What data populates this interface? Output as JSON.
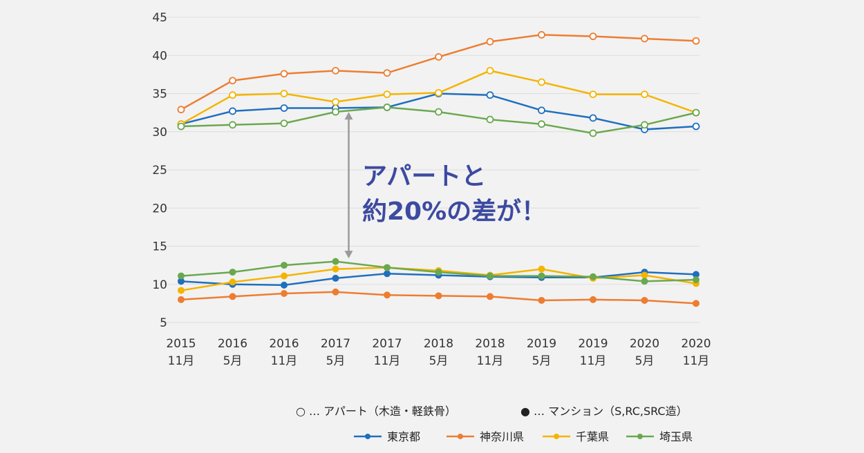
{
  "chart_data": {
    "type": "line",
    "categories": [
      [
        "2015",
        "11月"
      ],
      [
        "2016",
        "5月"
      ],
      [
        "2016",
        "11月"
      ],
      [
        "2017",
        "5月"
      ],
      [
        "2017",
        "11月"
      ],
      [
        "2018",
        "5月"
      ],
      [
        "2018",
        "11月"
      ],
      [
        "2019",
        "5月"
      ],
      [
        "2019",
        "11月"
      ],
      [
        "2020",
        "5月"
      ],
      [
        "2020",
        "11月"
      ]
    ],
    "ylim": [
      5,
      45
    ],
    "yticks": [
      5,
      10,
      15,
      20,
      25,
      30,
      35,
      40,
      45
    ],
    "grid": true,
    "series": [
      {
        "name": "東京都",
        "color": "#1f6fbf",
        "type": "アパート",
        "values": [
          31.0,
          32.7,
          33.1,
          33.1,
          33.2,
          35.0,
          34.8,
          32.8,
          31.8,
          30.3,
          30.7
        ]
      },
      {
        "name": "神奈川県",
        "color": "#ed7d31",
        "type": "アパート",
        "values": [
          32.9,
          36.7,
          37.6,
          38.0,
          37.7,
          39.8,
          41.8,
          42.7,
          42.5,
          42.2,
          41.9
        ]
      },
      {
        "name": "千葉県",
        "color": "#f4b400",
        "type": "アパート",
        "values": [
          31.0,
          34.8,
          35.0,
          33.9,
          34.9,
          35.1,
          38.0,
          36.5,
          34.9,
          34.9,
          32.5
        ]
      },
      {
        "name": "埼玉県",
        "color": "#6aa84f",
        "type": "アパート",
        "values": [
          30.7,
          30.9,
          31.1,
          32.6,
          33.2,
          32.6,
          31.6,
          31.0,
          29.8,
          30.9,
          32.5
        ]
      },
      {
        "name": "東京都",
        "color": "#1f6fbf",
        "type": "マンション",
        "values": [
          10.4,
          10.0,
          9.9,
          10.8,
          11.4,
          11.2,
          11.0,
          10.9,
          10.9,
          11.6,
          11.3
        ]
      },
      {
        "name": "神奈川県",
        "color": "#ed7d31",
        "type": "マンション",
        "values": [
          8.0,
          8.4,
          8.8,
          9.0,
          8.6,
          8.5,
          8.4,
          7.9,
          8.0,
          7.9,
          7.5
        ]
      },
      {
        "name": "千葉県",
        "color": "#f4b400",
        "type": "マンション",
        "values": [
          9.2,
          10.3,
          11.1,
          12.0,
          12.2,
          11.8,
          11.2,
          12.0,
          10.8,
          11.2,
          10.1
        ]
      },
      {
        "name": "埼玉県",
        "color": "#6aa84f",
        "type": "マンション",
        "values": [
          11.1,
          11.6,
          12.5,
          13.0,
          12.2,
          11.6,
          11.1,
          11.1,
          11.0,
          10.4,
          10.6
        ]
      }
    ],
    "annotation": {
      "lines": [
        "アパートと",
        "約20%の差が！"
      ],
      "arrow_from": 32.5,
      "arrow_to": 13.5,
      "arrow_at_category": 3
    },
    "legend_markers": {
      "open": "○ … アパート（木造・軽鉄骨）",
      "filled": "● … マンション（S,RC,SRC造）"
    },
    "legend_entries": [
      {
        "name": "東京都",
        "color": "#1f6fbf"
      },
      {
        "name": "神奈川県",
        "color": "#ed7d31"
      },
      {
        "name": "千葉県",
        "color": "#f4b400"
      },
      {
        "name": "埼玉県",
        "color": "#6aa84f"
      }
    ]
  }
}
